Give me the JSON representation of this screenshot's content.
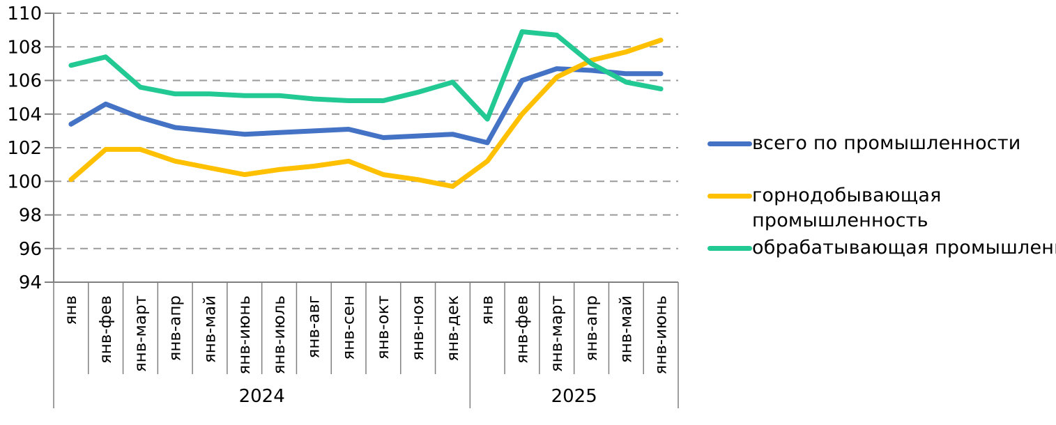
{
  "chart_data": {
    "type": "line",
    "title": "",
    "xlabel": "",
    "ylabel": "",
    "categories": [
      "янв",
      "янв-фев",
      "янв-март",
      "янв-апр",
      "янв-май",
      "янв-июнь",
      "янв-июль",
      "янв-авг",
      "янв-сен",
      "янв-окт",
      "янв-ноя",
      "янв-дек",
      "янв",
      "янв-фев",
      "янв-март",
      "янв-апр",
      "янв-май",
      "янв-июнь"
    ],
    "year_groups": [
      {
        "label": "2024",
        "span": 12
      },
      {
        "label": "2025",
        "span": 6
      }
    ],
    "yaxis": {
      "min": 94,
      "max": 110,
      "step": 2
    },
    "grid": "horizontal-dashed",
    "legend_position": "right",
    "series": [
      {
        "key": "total",
        "name": "всего по промышленности",
        "color": "#4472C4",
        "values": [
          103.4,
          104.6,
          103.8,
          103.2,
          103.0,
          102.8,
          102.9,
          103.0,
          103.1,
          102.6,
          102.7,
          102.8,
          102.3,
          106.0,
          106.7,
          106.6,
          106.4,
          106.4
        ]
      },
      {
        "key": "mining",
        "name": "горнодобывающая промышленность",
        "color": "#FFC000",
        "values": [
          100.1,
          101.9,
          101.9,
          101.2,
          100.8,
          100.4,
          100.7,
          100.9,
          101.2,
          100.4,
          100.1,
          99.7,
          101.2,
          104.0,
          106.2,
          107.2,
          107.7,
          108.4
        ]
      },
      {
        "key": "manufacturing",
        "name": "обрабатывающая промышленность",
        "color": "#22C993",
        "values": [
          106.9,
          107.4,
          105.6,
          105.2,
          105.2,
          105.1,
          105.1,
          104.9,
          104.8,
          104.8,
          105.3,
          105.9,
          103.7,
          108.9,
          108.7,
          107.0,
          105.9,
          105.5
        ]
      }
    ],
    "colors": {
      "gridline": "#9a9a9a",
      "axis": "#7f7f7f",
      "text": "#000000"
    }
  }
}
